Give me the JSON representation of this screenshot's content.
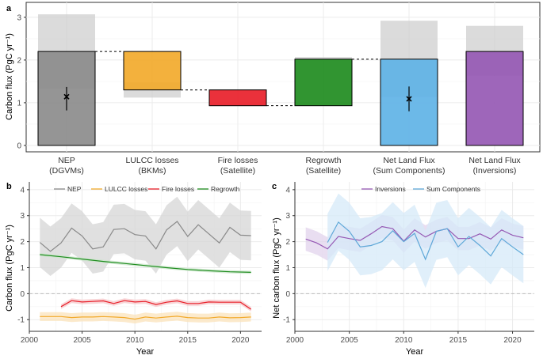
{
  "chart_data": [
    {
      "panel": "a",
      "type": "bar",
      "ylabel": "Carbon flux (PgC yr⁻¹)",
      "ylim": [
        -0.15,
        3.35
      ],
      "yticks": [
        "0",
        "1",
        "2",
        "3"
      ],
      "bars": [
        {
          "line1": "NEP",
          "line2": "(DGVMs)",
          "base": 0,
          "top": 2.2,
          "color": "#8c8c8c",
          "band_low": 1.33,
          "band_high": 3.07,
          "point": 1.14,
          "err_low": 0.82,
          "err_high": 1.37
        },
        {
          "line1": "LULCC losses",
          "line2": "(BKMs)",
          "base": 1.3,
          "top": 2.2,
          "color": "#f2aa2d",
          "band_low": 1.12,
          "band_high": 1.48
        },
        {
          "line1": "Fire losses",
          "line2": "(Satellite)",
          "base": 0.93,
          "top": 1.3,
          "color": "#e8202a",
          "band_low": 0.92,
          "band_high": 0.95
        },
        {
          "line1": "Regrowth",
          "line2": "(Satellite)",
          "base": 0.93,
          "top": 2.02,
          "color": "#1f8c1f",
          "band_low": 2.0,
          "band_high": 2.07
        },
        {
          "line1": "Net Land Flux",
          "line2": "(Sum Components)",
          "base": 0,
          "top": 2.02,
          "color": "#5fb3e6",
          "band_low": 1.13,
          "band_high": 2.92,
          "point": 1.09,
          "err_low": 0.8,
          "err_high": 1.38
        },
        {
          "line1": "Net Land Flux",
          "line2": "(Inversions)",
          "base": 0,
          "top": 2.2,
          "color": "#9659b4",
          "band_low": 1.63,
          "band_high": 2.8
        }
      ]
    },
    {
      "panel": "b",
      "type": "line",
      "xlabel": "Year",
      "ylabel": "Carbon flux (PgC yr⁻¹)",
      "xlim": [
        2000,
        2022
      ],
      "ylim": [
        -1.45,
        4.3
      ],
      "xticks": [
        "2000",
        "2005",
        "2010",
        "2015",
        "2020"
      ],
      "yticks": [
        "-1",
        "0",
        "1",
        "2",
        "3",
        "4"
      ],
      "series": [
        {
          "name": "NEP",
          "color": "#8a8a8a",
          "band": "#d6d6d6",
          "band_width": 0.95,
          "x": [
            2001,
            2002,
            2003,
            2004,
            2005,
            2006,
            2007,
            2008,
            2009,
            2010,
            2011,
            2012,
            2013,
            2014,
            2015,
            2016,
            2017,
            2018,
            2019,
            2020,
            2021
          ],
          "y": [
            1.97,
            1.63,
            1.95,
            2.52,
            2.22,
            1.72,
            1.8,
            2.47,
            2.5,
            2.27,
            2.22,
            1.72,
            2.45,
            2.78,
            2.2,
            2.65,
            2.3,
            1.95,
            2.55,
            2.25,
            2.23
          ]
        },
        {
          "name": "LULCC losses",
          "color": "#f2aa2d",
          "band": "#fbe3bb",
          "band_width": 0.17,
          "x": [
            2001,
            2002,
            2003,
            2004,
            2005,
            2006,
            2007,
            2008,
            2009,
            2010,
            2011,
            2012,
            2013,
            2014,
            2015,
            2016,
            2017,
            2018,
            2019,
            2020,
            2021
          ],
          "y": [
            -0.88,
            -0.88,
            -0.88,
            -0.92,
            -0.9,
            -0.9,
            -0.88,
            -0.9,
            -0.92,
            -0.98,
            -0.9,
            -0.94,
            -0.9,
            -0.87,
            -0.92,
            -0.94,
            -0.94,
            -0.9,
            -0.93,
            -0.92,
            -0.9
          ]
        },
        {
          "name": "Fire losses",
          "color": "#e8202a",
          "band": "#f6c6c8",
          "band_width": 0.09,
          "x": [
            2003,
            2004,
            2005,
            2006,
            2007,
            2008,
            2009,
            2010,
            2011,
            2012,
            2013,
            2014,
            2015,
            2016,
            2017,
            2018,
            2019,
            2020,
            2021
          ],
          "y": [
            -0.5,
            -0.27,
            -0.32,
            -0.3,
            -0.28,
            -0.38,
            -0.27,
            -0.32,
            -0.3,
            -0.42,
            -0.33,
            -0.28,
            -0.38,
            -0.38,
            -0.32,
            -0.33,
            -0.33,
            -0.33,
            -0.6
          ]
        },
        {
          "name": "Regrowth",
          "color": "#1f8c1f",
          "band": "#c9e6c9",
          "band_width": 0.06,
          "x": [
            2001,
            2003,
            2005,
            2007,
            2009,
            2011,
            2013,
            2015,
            2017,
            2019,
            2021
          ],
          "y": [
            1.5,
            1.42,
            1.33,
            1.24,
            1.16,
            1.08,
            1.0,
            0.93,
            0.88,
            0.84,
            0.82
          ]
        }
      ]
    },
    {
      "panel": "c",
      "type": "line",
      "xlabel": "Year",
      "ylabel": "Net carbon flux (PgC yr⁻¹)",
      "xlim": [
        2000,
        2022
      ],
      "ylim": [
        -1.45,
        4.3
      ],
      "xticks": [
        "2000",
        "2005",
        "2010",
        "2015",
        "2020"
      ],
      "yticks": [
        "-1",
        "0",
        "1",
        "2",
        "3",
        "4"
      ],
      "series": [
        {
          "name": "Inversions",
          "color": "#9659b4",
          "band": "#e2d3ec",
          "band_width": 0.45,
          "x": [
            2001,
            2002,
            2003,
            2004,
            2005,
            2006,
            2007,
            2008,
            2009,
            2010,
            2011,
            2012,
            2013,
            2014,
            2015,
            2016,
            2017,
            2018,
            2019,
            2020,
            2021
          ],
          "y": [
            2.1,
            1.95,
            1.72,
            2.2,
            2.12,
            2.05,
            2.3,
            2.58,
            2.5,
            2.02,
            2.45,
            2.18,
            2.4,
            2.5,
            2.12,
            2.12,
            2.3,
            2.1,
            2.45,
            2.25,
            2.15
          ]
        },
        {
          "name": "Sum Components",
          "color": "#5fa8d8",
          "band": "#d6eaf8",
          "band_width": 1.1,
          "x": [
            2003,
            2004,
            2005,
            2006,
            2007,
            2008,
            2009,
            2010,
            2011,
            2012,
            2013,
            2014,
            2015,
            2016,
            2017,
            2018,
            2019,
            2020,
            2021
          ],
          "y": [
            1.97,
            2.75,
            2.4,
            1.8,
            1.85,
            2.0,
            2.42,
            2.0,
            2.32,
            1.32,
            2.4,
            2.5,
            1.8,
            2.2,
            1.85,
            1.45,
            2.12,
            1.8,
            1.5
          ]
        }
      ]
    }
  ]
}
